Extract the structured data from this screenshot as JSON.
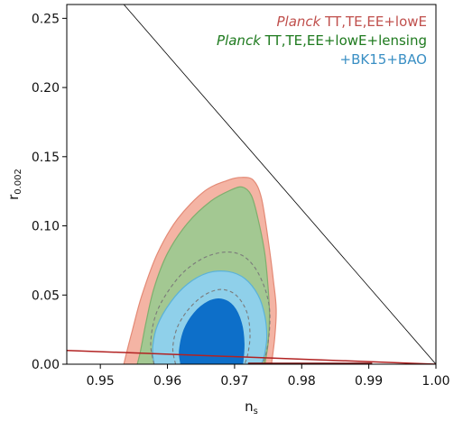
{
  "chart_data": {
    "type": "contour",
    "xlabel": "n",
    "xlabel_sub": "s",
    "ylabel": "r",
    "ylabel_sub": "0.002",
    "xlim": [
      0.945,
      1.0
    ],
    "ylim": [
      0.0,
      0.26
    ],
    "xticks": [
      0.95,
      0.96,
      0.97,
      0.98,
      0.99,
      1.0
    ],
    "xtick_labels": [
      "0.95",
      "0.96",
      "0.97",
      "0.98",
      "0.99",
      "1.00"
    ],
    "yticks": [
      0.0,
      0.05,
      0.1,
      0.15,
      0.2,
      0.25
    ],
    "ytick_labels": [
      "0.00",
      "0.05",
      "0.10",
      "0.15",
      "0.20",
      "0.25"
    ],
    "grid": false,
    "legend_placement": "top-right",
    "legend": [
      {
        "italic": "Planck",
        "text": " TT,TE,EE+lowE",
        "color": "#c0504d"
      },
      {
        "italic": "Planck",
        "text": " TT,TE,EE+lowE+lensing",
        "color": "#1e7a1e"
      },
      {
        "italic": "",
        "text": "+BK15+BAO",
        "color": "#3a8fc4"
      }
    ],
    "series": [
      {
        "fill": "#f4b4a4",
        "stroke": "#e38a76",
        "points": [
          [
            0.9535,
            0.0
          ],
          [
            0.954,
            0.01
          ],
          [
            0.9548,
            0.025
          ],
          [
            0.9562,
            0.05
          ],
          [
            0.9585,
            0.08
          ],
          [
            0.9615,
            0.105
          ],
          [
            0.9655,
            0.125
          ],
          [
            0.969,
            0.133
          ],
          [
            0.971,
            0.135
          ],
          [
            0.9728,
            0.133
          ],
          [
            0.974,
            0.12
          ],
          [
            0.975,
            0.09
          ],
          [
            0.9758,
            0.06
          ],
          [
            0.9762,
            0.04
          ],
          [
            0.976,
            0.02
          ],
          [
            0.9755,
            0.0
          ]
        ]
      },
      {
        "fill": "#a3c892",
        "stroke": "#7fae6e",
        "points": [
          [
            0.9555,
            0.0
          ],
          [
            0.956,
            0.01
          ],
          [
            0.9568,
            0.03
          ],
          [
            0.958,
            0.055
          ],
          [
            0.96,
            0.08
          ],
          [
            0.963,
            0.102
          ],
          [
            0.9665,
            0.118
          ],
          [
            0.9695,
            0.126
          ],
          [
            0.9712,
            0.128
          ],
          [
            0.9725,
            0.122
          ],
          [
            0.9735,
            0.105
          ],
          [
            0.9745,
            0.08
          ],
          [
            0.975,
            0.055
          ],
          [
            0.9752,
            0.035
          ],
          [
            0.975,
            0.015
          ],
          [
            0.9745,
            0.0
          ]
        ]
      },
      {
        "fill": "#8fd0ea",
        "stroke": "#5bb2d8",
        "points": [
          [
            0.958,
            0.0
          ],
          [
            0.9578,
            0.012
          ],
          [
            0.9585,
            0.028
          ],
          [
            0.9605,
            0.045
          ],
          [
            0.963,
            0.058
          ],
          [
            0.966,
            0.066
          ],
          [
            0.969,
            0.067
          ],
          [
            0.9715,
            0.062
          ],
          [
            0.9735,
            0.05
          ],
          [
            0.9745,
            0.035
          ],
          [
            0.9748,
            0.02
          ],
          [
            0.9745,
            0.008
          ],
          [
            0.974,
            0.0
          ]
        ]
      },
      {
        "fill": "#0d6fc9",
        "stroke": "#0d6fc9",
        "points": [
          [
            0.962,
            0.0
          ],
          [
            0.9618,
            0.01
          ],
          [
            0.9625,
            0.025
          ],
          [
            0.964,
            0.037
          ],
          [
            0.966,
            0.045
          ],
          [
            0.968,
            0.047
          ],
          [
            0.9698,
            0.042
          ],
          [
            0.971,
            0.03
          ],
          [
            0.9714,
            0.015
          ],
          [
            0.9712,
            0.0
          ]
        ]
      }
    ],
    "dashed_contours": [
      {
        "color": "#7a7a7a",
        "points": [
          [
            0.958,
            0.0
          ],
          [
            0.9575,
            0.015
          ],
          [
            0.9582,
            0.035
          ],
          [
            0.96,
            0.052
          ],
          [
            0.9625,
            0.067
          ],
          [
            0.9655,
            0.077
          ],
          [
            0.9685,
            0.081
          ],
          [
            0.971,
            0.079
          ],
          [
            0.973,
            0.07
          ],
          [
            0.9745,
            0.055
          ],
          [
            0.9752,
            0.04
          ],
          [
            0.9752,
            0.025
          ],
          [
            0.9748,
            0.01
          ],
          [
            0.9742,
            0.0
          ]
        ]
      },
      {
        "color": "#7a7a7a",
        "points": [
          [
            0.9612,
            0.0
          ],
          [
            0.9608,
            0.012
          ],
          [
            0.9615,
            0.027
          ],
          [
            0.9632,
            0.04
          ],
          [
            0.9655,
            0.05
          ],
          [
            0.968,
            0.054
          ],
          [
            0.9702,
            0.05
          ],
          [
            0.9718,
            0.038
          ],
          [
            0.9723,
            0.022
          ],
          [
            0.972,
            0.008
          ],
          [
            0.9715,
            0.0
          ]
        ]
      }
    ],
    "lines": [
      {
        "color": "#000000",
        "width": 0.8,
        "points": [
          [
            0.9535,
            0.26
          ],
          [
            1.0,
            0.0
          ]
        ]
      },
      {
        "color": "#b22222",
        "width": 1.5,
        "points": [
          [
            0.945,
            0.01
          ],
          [
            1.0,
            0.0
          ]
        ]
      },
      {
        "color": "#7a1010",
        "width": 2.0,
        "points": [
          [
            0.972,
            0.0005
          ],
          [
            0.9905,
            0.0005
          ]
        ]
      }
    ]
  }
}
